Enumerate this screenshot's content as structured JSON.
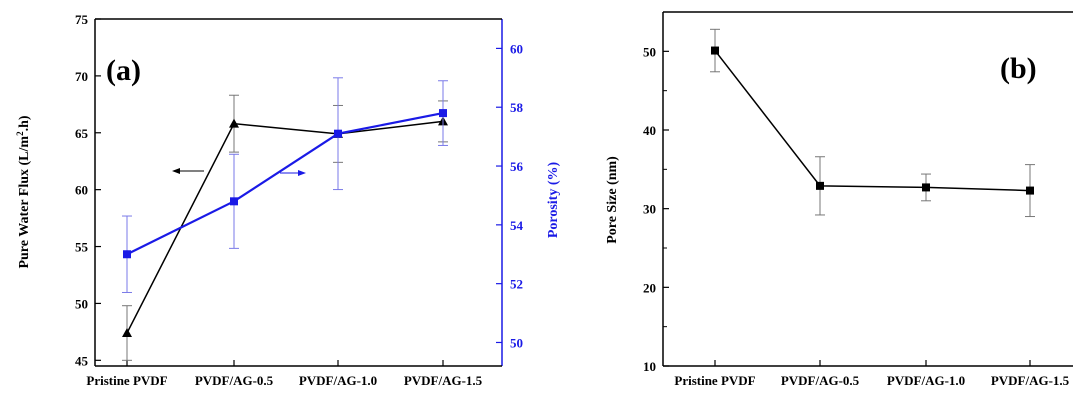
{
  "colors": {
    "black": "#000000",
    "blue": "#1a1ae6",
    "error": "#777777"
  },
  "chart_data": [
    {
      "type": "line",
      "panel_label": "(a)",
      "categories": [
        "Pristine PVDF",
        "PVDF/AG-0.5",
        "PVDF/AG-1.0",
        "PVDF/AG-1.5"
      ],
      "ylabel": "Pure Water Flux (L/m².h)",
      "ylim": [
        44.5,
        75
      ],
      "yticks": [
        45,
        50,
        55,
        60,
        65,
        70,
        75
      ],
      "y2label": "Porosity (%)",
      "y2lim": [
        49.2,
        61
      ],
      "y2ticks": [
        50,
        52,
        54,
        56,
        58,
        60
      ],
      "grid": false,
      "series": [
        {
          "axis": "left",
          "marker": "triangle",
          "color": "#000000",
          "values": [
            47.4,
            65.8,
            64.9,
            66.0
          ],
          "errors": [
            2.4,
            2.5,
            2.5,
            1.8
          ]
        },
        {
          "axis": "right",
          "marker": "square",
          "color": "#1a1ae6",
          "values": [
            53.0,
            54.8,
            57.1,
            57.8
          ],
          "errors": [
            1.3,
            1.6,
            1.9,
            1.1
          ]
        }
      ],
      "annotations": [
        {
          "type": "arrow",
          "direction": "left",
          "target_axis": "left"
        },
        {
          "type": "arrow",
          "direction": "right",
          "target_axis": "right"
        }
      ]
    },
    {
      "type": "line",
      "panel_label": "(b)",
      "categories": [
        "Pristine PVDF",
        "PVDF/AG-0.5",
        "PVDF/AG-1.0",
        "PVDF/AG-1.5"
      ],
      "ylabel": "Pore Size (nm)",
      "ylim": [
        10,
        55
      ],
      "yticks": [
        10,
        20,
        30,
        40,
        50
      ],
      "grid": false,
      "series": [
        {
          "marker": "square",
          "color": "#000000",
          "values": [
            50.1,
            32.9,
            32.7,
            32.3
          ],
          "errors": [
            2.7,
            3.7,
            1.7,
            3.3
          ]
        }
      ]
    }
  ]
}
